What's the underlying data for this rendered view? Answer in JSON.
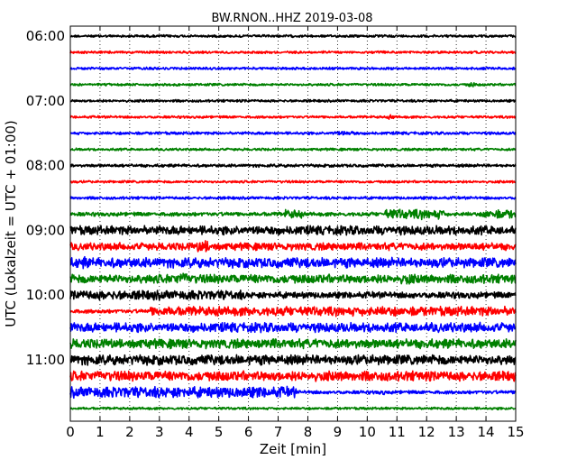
{
  "chart_data": {
    "type": "line",
    "title": "BW.RNON..HHZ 2019-03-08",
    "xlabel": "Zeit  [min]",
    "ylabel": "UTC (Lokalzeit = UTC + 01:00)",
    "xlim": [
      0,
      15
    ],
    "x_ticks": [
      "0",
      "1",
      "2",
      "3",
      "4",
      "5",
      "6",
      "7",
      "8",
      "9",
      "10",
      "11",
      "12",
      "13",
      "14",
      "15"
    ],
    "y_ticks": [
      {
        "label": "06:00",
        "row": 0
      },
      {
        "label": "07:00",
        "row": 4
      },
      {
        "label": "08:00",
        "row": 8
      },
      {
        "label": "09:00",
        "row": 12
      },
      {
        "label": "10:00",
        "row": 16
      },
      {
        "label": "11:00",
        "row": 20
      }
    ],
    "grid": {
      "vertical": true,
      "style": "dotted"
    },
    "color_cycle": [
      "#000000",
      "#ff0000",
      "#0000ff",
      "#008000"
    ],
    "traces": [
      {
        "start": "06:00",
        "base_amp": 0.25,
        "bursts": []
      },
      {
        "start": "06:15",
        "base_amp": 0.25,
        "bursts": []
      },
      {
        "start": "06:30",
        "base_amp": 0.25,
        "bursts": []
      },
      {
        "start": "06:45",
        "base_amp": 0.25,
        "bursts": [
          {
            "from": 13.4,
            "to": 13.6,
            "amp": 0.5
          }
        ]
      },
      {
        "start": "07:00",
        "base_amp": 0.25,
        "bursts": []
      },
      {
        "start": "07:15",
        "base_amp": 0.25,
        "bursts": [
          {
            "from": 10.7,
            "to": 10.9,
            "amp": 0.45
          }
        ]
      },
      {
        "start": "07:30",
        "base_amp": 0.28,
        "bursts": [
          {
            "from": 8.8,
            "to": 9.6,
            "amp": 0.45
          }
        ]
      },
      {
        "start": "07:45",
        "base_amp": 0.25,
        "bursts": []
      },
      {
        "start": "08:00",
        "base_amp": 0.3,
        "bursts": []
      },
      {
        "start": "08:15",
        "base_amp": 0.25,
        "bursts": []
      },
      {
        "start": "08:30",
        "base_amp": 0.28,
        "bursts": []
      },
      {
        "start": "08:45",
        "base_amp": 0.4,
        "bursts": [
          {
            "from": 7.2,
            "to": 7.8,
            "amp": 0.9
          },
          {
            "from": 10.6,
            "to": 12.6,
            "amp": 1.0
          },
          {
            "from": 13.9,
            "to": 15,
            "amp": 0.9
          }
        ]
      },
      {
        "start": "09:00",
        "base_amp": 0.9,
        "bursts": []
      },
      {
        "start": "09:15",
        "base_amp": 0.75,
        "bursts": [
          {
            "from": 4.3,
            "to": 4.7,
            "amp": 1.3
          }
        ]
      },
      {
        "start": "09:30",
        "base_amp": 1.0,
        "bursts": [
          {
            "from": 0.3,
            "to": 0.5,
            "amp": 1.3
          }
        ]
      },
      {
        "start": "09:45",
        "base_amp": 0.9,
        "bursts": [
          {
            "from": 3.5,
            "to": 4.0,
            "amp": 1.2
          },
          {
            "from": 11.2,
            "to": 11.5,
            "amp": 1.2
          }
        ]
      },
      {
        "start": "10:00",
        "base_amp": 0.65,
        "bursts": [
          {
            "from": 0,
            "to": 5.8,
            "amp": 0.95
          }
        ]
      },
      {
        "start": "10:15",
        "base_amp": 0.4,
        "bursts": [
          {
            "from": 2.7,
            "to": 15,
            "amp": 0.95
          }
        ]
      },
      {
        "start": "10:30",
        "base_amp": 0.95,
        "bursts": []
      },
      {
        "start": "10:45",
        "base_amp": 0.95,
        "bursts": []
      },
      {
        "start": "11:00",
        "base_amp": 1.0,
        "bursts": []
      },
      {
        "start": "11:15",
        "base_amp": 1.0,
        "bursts": []
      },
      {
        "start": "11:30",
        "base_amp": 0.35,
        "bursts": [
          {
            "from": 0,
            "to": 7.6,
            "amp": 1.1
          },
          {
            "from": 10.4,
            "to": 10.6,
            "amp": 0.5
          }
        ]
      },
      {
        "start": "11:45",
        "base_amp": 0.25,
        "bursts": []
      }
    ]
  }
}
